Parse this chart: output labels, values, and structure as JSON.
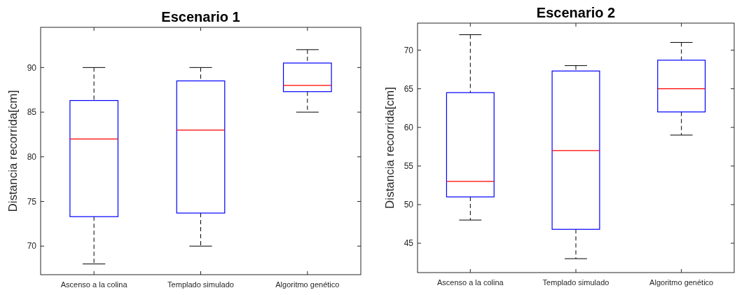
{
  "chart_data": [
    {
      "type": "box",
      "title": "Escenario 1",
      "ylabel": "Distancia recorrida[cm]",
      "categories": [
        "Ascenso a la colina",
        "Templado simulado",
        "Algoritmo genético"
      ],
      "ylim": [
        66.8,
        94.5
      ],
      "yticks": [
        70,
        75,
        80,
        85,
        90
      ],
      "grid": false,
      "series": [
        {
          "color": "#0000ff",
          "boxes": [
            {
              "low": 68,
              "q1": 73.3,
              "median": 82,
              "q3": 86.3,
              "high": 90
            },
            {
              "low": 70,
              "q1": 73.7,
              "median": 83,
              "q3": 88.5,
              "high": 90
            },
            {
              "low": 85,
              "q1": 87.3,
              "median": 88,
              "q3": 90.5,
              "high": 92
            }
          ]
        }
      ]
    },
    {
      "type": "box",
      "title": "Escenario 2",
      "ylabel": "Distancia recorrida[cm]",
      "categories": [
        "Ascenso a la colina",
        "Templado simulado",
        "Algoritmo genético"
      ],
      "ylim": [
        41.2,
        73.5
      ],
      "yticks": [
        45,
        50,
        55,
        60,
        65,
        70
      ],
      "grid": false,
      "series": [
        {
          "color": "#0000ff",
          "boxes": [
            {
              "low": 48,
              "q1": 51,
              "median": 53,
              "q3": 64.5,
              "high": 72
            },
            {
              "low": 43,
              "q1": 46.8,
              "median": 57,
              "q3": 67.3,
              "high": 68
            },
            {
              "low": 59,
              "q1": 62,
              "median": 65,
              "q3": 68.7,
              "high": 71
            }
          ]
        }
      ]
    }
  ]
}
